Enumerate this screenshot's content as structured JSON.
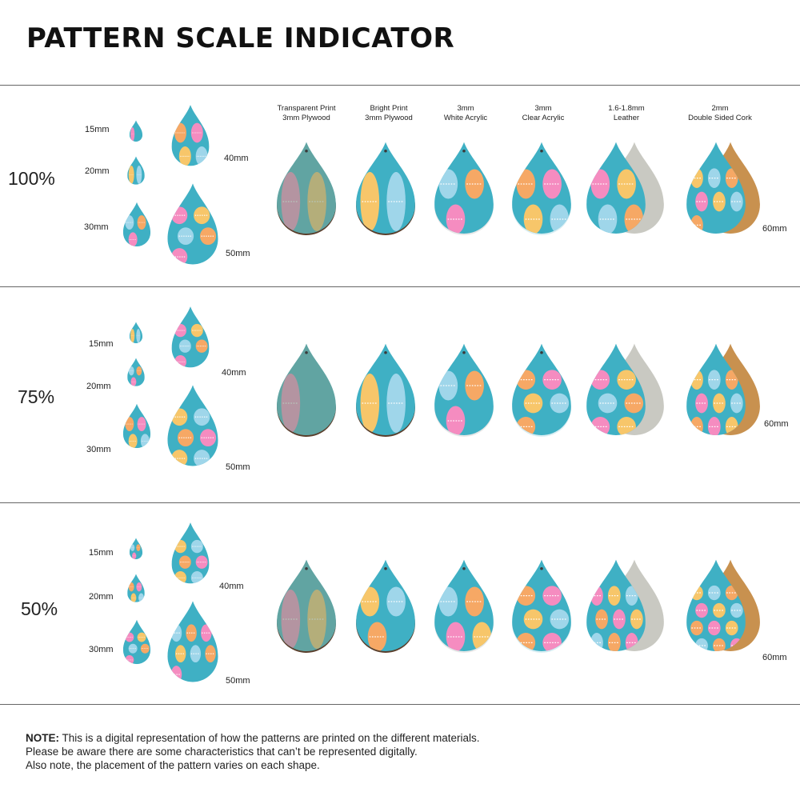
{
  "title": "PATTERN SCALE INDICATOR",
  "columns": [
    {
      "line1": "Transparent Print",
      "line2": "3mm Plywood"
    },
    {
      "line1": "Bright Print",
      "line2": "3mm Plywood"
    },
    {
      "line1": "3mm",
      "line2": "White Acrylic"
    },
    {
      "line1": "3mm",
      "line2": "Clear Acrylic"
    },
    {
      "line1": "1.6-1.8mm",
      "line2": "Leather"
    },
    {
      "line1": "2mm",
      "line2": "Double Sided Cork"
    }
  ],
  "sections": [
    {
      "scale": "100%",
      "sizes": {
        "s15": "15mm",
        "s20": "20mm",
        "s30": "30mm",
        "s40": "40mm",
        "s50": "50mm",
        "s60": "60mm"
      }
    },
    {
      "scale": "75%",
      "sizes": {
        "s15": "15mm",
        "s20": "20mm",
        "s30": "30mm",
        "s40": "40mm",
        "s50": "50mm",
        "s60": "60mm"
      }
    },
    {
      "scale": "50%",
      "sizes": {
        "s15": "15mm",
        "s20": "20mm",
        "s30": "30mm",
        "s40": "40mm",
        "s50": "50mm",
        "s60": "60mm"
      }
    }
  ],
  "note": {
    "label": "NOTE:",
    "line1": " This is a digital representation of how the patterns are printed on the different materials.",
    "line2": "Please be aware there are some characteristics that can’t be represented digitally.",
    "line3": "Also note, the placement of the pattern varies on each shape."
  },
  "colors": {
    "pattern_bg": "#3fb0c4",
    "egg_pink": "#f58cc0",
    "egg_yellow": "#f7c66a",
    "egg_blue": "#9fd6ea",
    "egg_orange": "#f6a865",
    "plywood_tint": "#7e9a86",
    "leather": "#c9c9c2",
    "cork": "#c8914f"
  }
}
